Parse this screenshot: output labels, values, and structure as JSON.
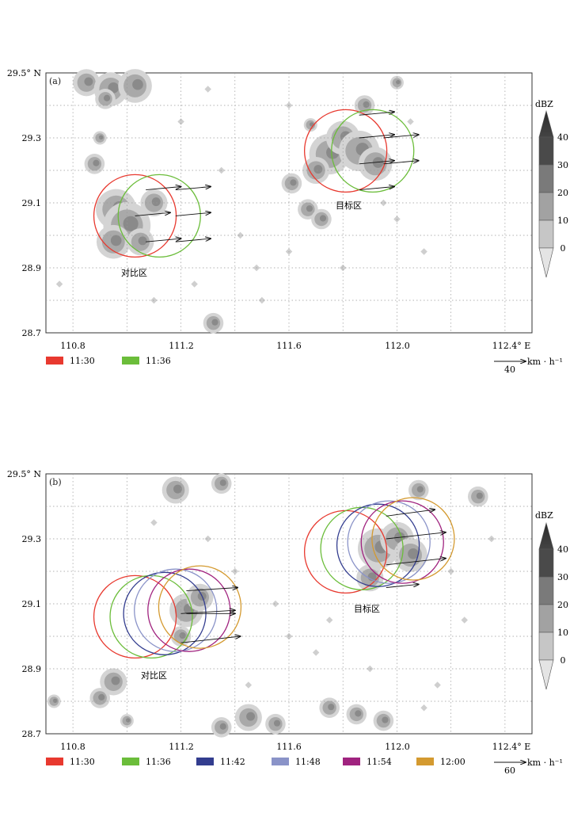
{
  "panels": [
    {
      "id": "a",
      "label": "(a)",
      "y_ticks": [
        "29.5° N",
        "29.3",
        "29.1",
        "28.9",
        "28.7"
      ],
      "x_ticks": [
        "110.8",
        "111.2",
        "111.6",
        "112.0",
        "112.4° E"
      ],
      "region_labels": {
        "target": "目标区",
        "compare": "对比区"
      },
      "colorbar": {
        "title": "dBZ",
        "ticks": [
          "40",
          "30",
          "20",
          "10",
          "0"
        ],
        "shades": [
          "#4a4a4a",
          "#7a7a7a",
          "#a2a2a2",
          "#c6c6c6",
          "#e4e4e4"
        ]
      },
      "legend": [
        {
          "time": "11:30",
          "color": "#e8392f"
        },
        {
          "time": "11:36",
          "color": "#6bbd3a"
        }
      ],
      "scale": {
        "value": "40",
        "unit": "km · h⁻¹"
      },
      "circles": {
        "compare": [
          {
            "lon": 111.03,
            "lat": 29.06,
            "color": "#e8392f"
          },
          {
            "lon": 111.12,
            "lat": 29.06,
            "color": "#6bbd3a"
          }
        ],
        "target": [
          {
            "lon": 111.81,
            "lat": 29.26,
            "color": "#e8392f"
          },
          {
            "lon": 111.91,
            "lat": 29.26,
            "color": "#6bbd3a"
          }
        ]
      },
      "arrows": [
        {
          "lon": 111.07,
          "lat": 29.14,
          "dlon": 0.13,
          "dlat": 0.01
        },
        {
          "lon": 111.18,
          "lat": 29.14,
          "dlon": 0.13,
          "dlat": 0.01
        },
        {
          "lon": 111.03,
          "lat": 29.06,
          "dlon": 0.13,
          "dlat": 0.01
        },
        {
          "lon": 111.18,
          "lat": 29.06,
          "dlon": 0.13,
          "dlat": 0.01
        },
        {
          "lon": 111.07,
          "lat": 28.98,
          "dlon": 0.13,
          "dlat": 0.01
        },
        {
          "lon": 111.18,
          "lat": 28.98,
          "dlon": 0.13,
          "dlat": 0.01
        },
        {
          "lon": 111.86,
          "lat": 29.37,
          "dlon": 0.13,
          "dlat": 0.01
        },
        {
          "lon": 111.86,
          "lat": 29.3,
          "dlon": 0.13,
          "dlat": 0.01
        },
        {
          "lon": 111.95,
          "lat": 29.3,
          "dlon": 0.13,
          "dlat": 0.01
        },
        {
          "lon": 111.86,
          "lat": 29.22,
          "dlon": 0.13,
          "dlat": 0.01
        },
        {
          "lon": 111.95,
          "lat": 29.22,
          "dlon": 0.13,
          "dlat": 0.01
        },
        {
          "lon": 111.86,
          "lat": 29.14,
          "dlon": 0.13,
          "dlat": 0.01
        }
      ],
      "echo_blobs": [
        {
          "lon": 110.85,
          "lat": 29.47,
          "r": 0.04
        },
        {
          "lon": 110.94,
          "lat": 29.45,
          "r": 0.05
        },
        {
          "lon": 111.03,
          "lat": 29.46,
          "r": 0.05
        },
        {
          "lon": 110.92,
          "lat": 29.42,
          "r": 0.03
        },
        {
          "lon": 110.96,
          "lat": 29.08,
          "r": 0.06
        },
        {
          "lon": 111.0,
          "lat": 29.03,
          "r": 0.07
        },
        {
          "lon": 110.95,
          "lat": 28.98,
          "r": 0.05
        },
        {
          "lon": 111.05,
          "lat": 28.98,
          "r": 0.04
        },
        {
          "lon": 111.1,
          "lat": 29.1,
          "r": 0.04
        },
        {
          "lon": 110.88,
          "lat": 29.22,
          "r": 0.03
        },
        {
          "lon": 110.9,
          "lat": 29.3,
          "r": 0.02
        },
        {
          "lon": 111.75,
          "lat": 29.25,
          "r": 0.06
        },
        {
          "lon": 111.8,
          "lat": 29.3,
          "r": 0.05
        },
        {
          "lon": 111.86,
          "lat": 29.26,
          "r": 0.06
        },
        {
          "lon": 111.92,
          "lat": 29.22,
          "r": 0.05
        },
        {
          "lon": 111.7,
          "lat": 29.2,
          "r": 0.04
        },
        {
          "lon": 111.67,
          "lat": 29.08,
          "r": 0.03
        },
        {
          "lon": 111.72,
          "lat": 29.05,
          "r": 0.03
        },
        {
          "lon": 111.88,
          "lat": 29.4,
          "r": 0.03
        },
        {
          "lon": 111.61,
          "lat": 29.16,
          "r": 0.03
        },
        {
          "lon": 111.32,
          "lat": 28.73,
          "r": 0.03
        },
        {
          "lon": 111.68,
          "lat": 29.34,
          "r": 0.02
        },
        {
          "lon": 112.0,
          "lat": 29.47,
          "r": 0.02
        }
      ],
      "echo_dots": [
        {
          "lon": 111.2,
          "lat": 29.35
        },
        {
          "lon": 111.35,
          "lat": 29.2
        },
        {
          "lon": 111.42,
          "lat": 29.0
        },
        {
          "lon": 111.5,
          "lat": 28.8
        },
        {
          "lon": 111.48,
          "lat": 28.9
        },
        {
          "lon": 111.6,
          "lat": 28.95
        },
        {
          "lon": 111.8,
          "lat": 28.9
        },
        {
          "lon": 112.1,
          "lat": 28.95
        },
        {
          "lon": 112.0,
          "lat": 29.05
        },
        {
          "lon": 111.95,
          "lat": 29.1
        },
        {
          "lon": 111.25,
          "lat": 28.85
        },
        {
          "lon": 111.1,
          "lat": 28.8
        },
        {
          "lon": 110.75,
          "lat": 28.85
        },
        {
          "lon": 111.6,
          "lat": 29.4
        },
        {
          "lon": 111.3,
          "lat": 29.45
        },
        {
          "lon": 112.05,
          "lat": 29.35
        }
      ]
    },
    {
      "id": "b",
      "label": "(b)",
      "y_ticks": [
        "29.5° N",
        "29.3",
        "29.1",
        "28.9",
        "28.7"
      ],
      "x_ticks": [
        "110.8",
        "111.2",
        "111.6",
        "112.0",
        "112.4° E"
      ],
      "region_labels": {
        "target": "目标区",
        "compare": "对比区"
      },
      "colorbar": {
        "title": "dBZ",
        "ticks": [
          "40",
          "30",
          "20",
          "10",
          "0"
        ],
        "shades": [
          "#4a4a4a",
          "#7a7a7a",
          "#a2a2a2",
          "#c6c6c6",
          "#e4e4e4"
        ]
      },
      "legend": [
        {
          "time": "11:30",
          "color": "#e8392f"
        },
        {
          "time": "11:36",
          "color": "#6bbd3a"
        },
        {
          "time": "11:42",
          "color": "#333d8f"
        },
        {
          "time": "11:48",
          "color": "#8a93c8"
        },
        {
          "time": "11:54",
          "color": "#a0237f"
        },
        {
          "time": "12:00",
          "color": "#d49a30"
        }
      ],
      "scale": {
        "value": "60",
        "unit": "km · h⁻¹"
      },
      "circles": {
        "compare": [
          {
            "lon": 111.03,
            "lat": 29.06,
            "color": "#e8392f"
          },
          {
            "lon": 111.09,
            "lat": 29.06,
            "color": "#6bbd3a"
          },
          {
            "lon": 111.14,
            "lat": 29.07,
            "color": "#333d8f"
          },
          {
            "lon": 111.18,
            "lat": 29.08,
            "color": "#8a93c8"
          },
          {
            "lon": 111.23,
            "lat": 29.08,
            "color": "#a0237f"
          },
          {
            "lon": 111.27,
            "lat": 29.09,
            "color": "#d49a30"
          }
        ],
        "target": [
          {
            "lon": 111.81,
            "lat": 29.26,
            "color": "#e8392f"
          },
          {
            "lon": 111.87,
            "lat": 29.27,
            "color": "#6bbd3a"
          },
          {
            "lon": 111.93,
            "lat": 29.28,
            "color": "#333d8f"
          },
          {
            "lon": 111.97,
            "lat": 29.29,
            "color": "#8a93c8"
          },
          {
            "lon": 112.02,
            "lat": 29.29,
            "color": "#a0237f"
          },
          {
            "lon": 112.06,
            "lat": 29.3,
            "color": "#d49a30"
          }
        ]
      },
      "arrows": [
        {
          "lon": 111.22,
          "lat": 29.14,
          "dlon": 0.19,
          "dlat": 0.01
        },
        {
          "lon": 111.2,
          "lat": 29.07,
          "dlon": 0.2,
          "dlat": 0.01
        },
        {
          "lon": 111.22,
          "lat": 29.07,
          "dlon": 0.18,
          "dlat": 0.0
        },
        {
          "lon": 111.2,
          "lat": 28.98,
          "dlon": 0.22,
          "dlat": 0.02
        },
        {
          "lon": 111.96,
          "lat": 29.37,
          "dlon": 0.18,
          "dlat": 0.02
        },
        {
          "lon": 111.96,
          "lat": 29.3,
          "dlon": 0.22,
          "dlat": 0.02
        },
        {
          "lon": 111.96,
          "lat": 29.22,
          "dlon": 0.22,
          "dlat": 0.02
        },
        {
          "lon": 111.96,
          "lat": 29.15,
          "dlon": 0.12,
          "dlat": 0.01
        }
      ],
      "echo_blobs": [
        {
          "lon": 111.18,
          "lat": 29.45,
          "r": 0.04
        },
        {
          "lon": 111.35,
          "lat": 29.47,
          "r": 0.03
        },
        {
          "lon": 111.22,
          "lat": 29.08,
          "r": 0.05
        },
        {
          "lon": 111.27,
          "lat": 29.12,
          "r": 0.04
        },
        {
          "lon": 111.2,
          "lat": 29.0,
          "r": 0.03
        },
        {
          "lon": 110.95,
          "lat": 28.86,
          "r": 0.04
        },
        {
          "lon": 110.9,
          "lat": 28.81,
          "r": 0.03
        },
        {
          "lon": 111.93,
          "lat": 29.27,
          "r": 0.06
        },
        {
          "lon": 112.0,
          "lat": 29.3,
          "r": 0.05
        },
        {
          "lon": 112.05,
          "lat": 29.25,
          "r": 0.05
        },
        {
          "lon": 111.9,
          "lat": 29.18,
          "r": 0.04
        },
        {
          "lon": 112.08,
          "lat": 29.45,
          "r": 0.03
        },
        {
          "lon": 112.3,
          "lat": 29.43,
          "r": 0.03
        },
        {
          "lon": 111.45,
          "lat": 28.75,
          "r": 0.04
        },
        {
          "lon": 111.35,
          "lat": 28.72,
          "r": 0.03
        },
        {
          "lon": 111.55,
          "lat": 28.73,
          "r": 0.03
        },
        {
          "lon": 111.75,
          "lat": 28.78,
          "r": 0.03
        },
        {
          "lon": 111.85,
          "lat": 28.76,
          "r": 0.03
        },
        {
          "lon": 111.95,
          "lat": 28.74,
          "r": 0.03
        },
        {
          "lon": 111.0,
          "lat": 28.74,
          "r": 0.02
        },
        {
          "lon": 110.73,
          "lat": 28.8,
          "r": 0.02
        }
      ],
      "echo_dots": [
        {
          "lon": 111.55,
          "lat": 29.1
        },
        {
          "lon": 111.6,
          "lat": 29.0
        },
        {
          "lon": 111.7,
          "lat": 28.95
        },
        {
          "lon": 111.75,
          "lat": 29.05
        },
        {
          "lon": 111.45,
          "lat": 28.85
        },
        {
          "lon": 111.9,
          "lat": 28.9
        },
        {
          "lon": 112.15,
          "lat": 28.85
        },
        {
          "lon": 112.2,
          "lat": 29.2
        },
        {
          "lon": 112.35,
          "lat": 29.3
        },
        {
          "lon": 111.3,
          "lat": 29.3
        },
        {
          "lon": 111.1,
          "lat": 29.35
        },
        {
          "lon": 112.25,
          "lat": 29.05
        },
        {
          "lon": 111.4,
          "lat": 29.2
        },
        {
          "lon": 112.1,
          "lat": 28.78
        }
      ]
    }
  ]
}
